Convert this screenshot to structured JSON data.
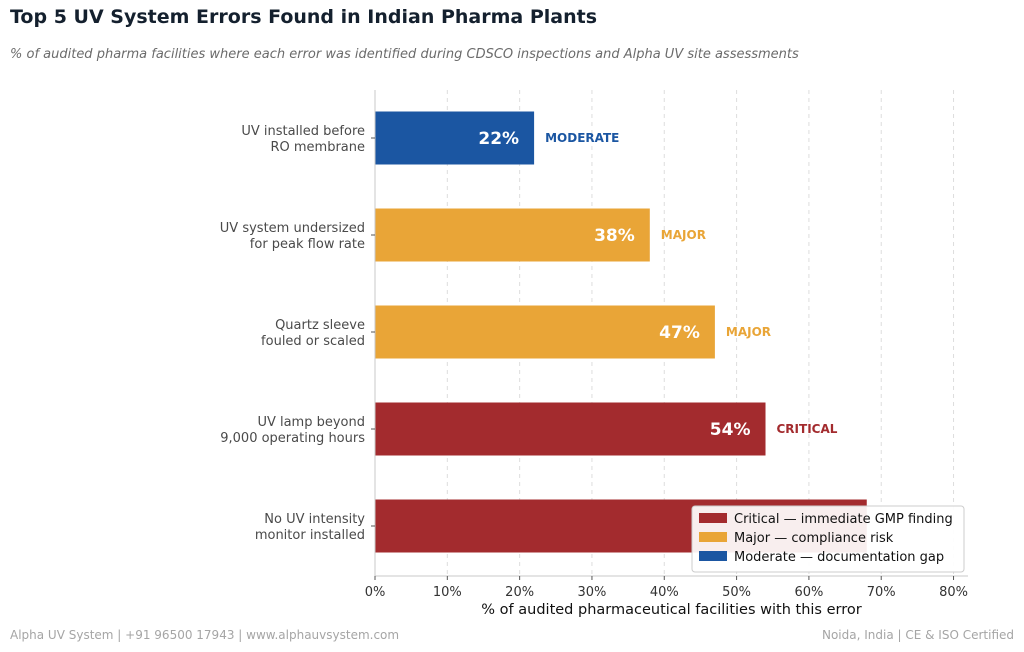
{
  "chart_data": {
    "type": "bar",
    "orientation": "horizontal",
    "title": "Top 5 UV System Errors Found in Indian Pharma Plants",
    "subtitle": "% of audited pharma facilities where each error was identified during CDSCO inspections and Alpha UV site assessments",
    "xlabel": "% of audited pharmaceutical facilities with this error",
    "xlim": [
      0,
      82
    ],
    "xticks": [
      0,
      10,
      20,
      30,
      40,
      50,
      60,
      70,
      80
    ],
    "tick_suffix": "%",
    "grid": "vertical dashed",
    "legend_position": "bottom-right",
    "categories": [
      [
        "UV installed before",
        "RO membrane"
      ],
      [
        "UV system undersized",
        "for peak flow rate"
      ],
      [
        "Quartz sleeve",
        "fouled or scaled"
      ],
      [
        "UV lamp beyond",
        "9,000 operating hours"
      ],
      [
        "No UV intensity",
        "monitor installed"
      ]
    ],
    "values": [
      22,
      38,
      47,
      54,
      68
    ],
    "value_labels": [
      "22%",
      "38%",
      "47%",
      "54%",
      ""
    ],
    "severity": [
      "MODERATE",
      "MAJOR",
      "MAJOR",
      "CRITICAL",
      ""
    ],
    "severity_key": [
      "moderate",
      "major",
      "major",
      "critical",
      "critical"
    ],
    "colors": {
      "critical": "#a32b2e",
      "major": "#e9a537",
      "moderate": "#1b56a2"
    },
    "legend": [
      {
        "key": "critical",
        "label": "Critical — immediate GMP finding"
      },
      {
        "key": "major",
        "label": "Major — compliance risk"
      },
      {
        "key": "moderate",
        "label": "Moderate — documentation gap"
      }
    ]
  },
  "footer": {
    "left": "Alpha UV System  |  +91 96500 17943  |  www.alphauvsystem.com",
    "right": "Noida, India  |  CE & ISO Certified"
  }
}
